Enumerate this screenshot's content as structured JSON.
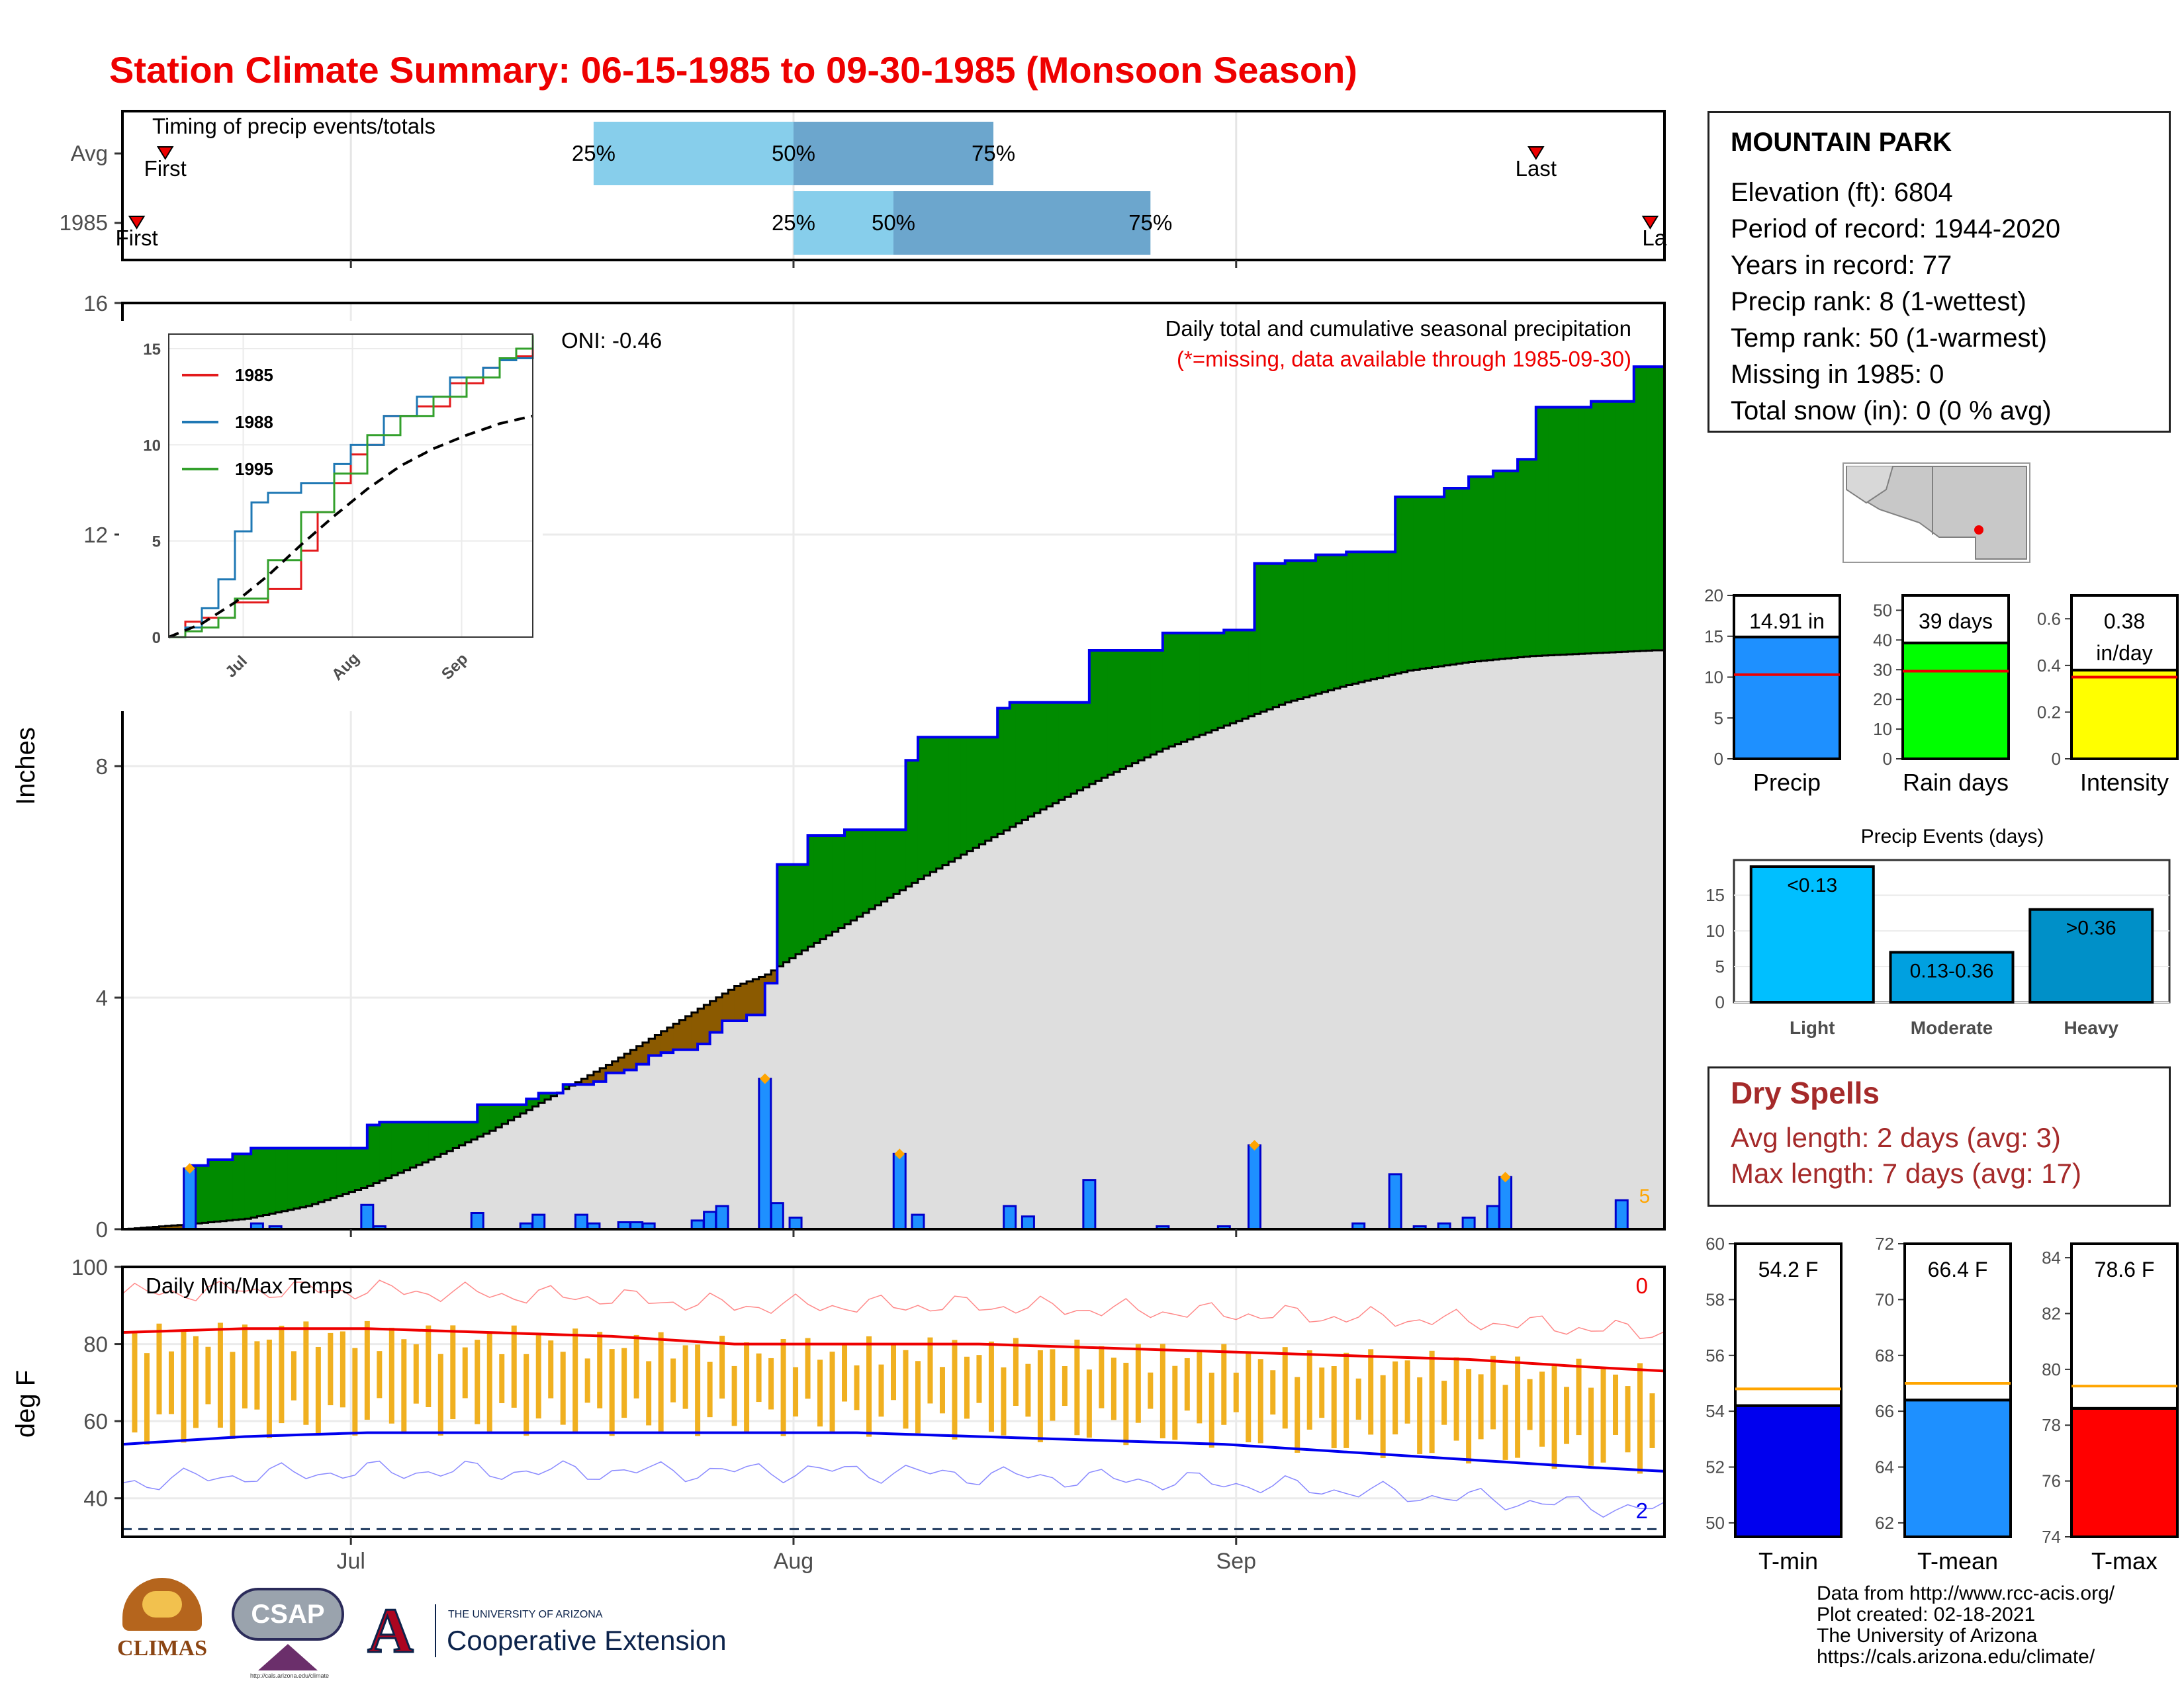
{
  "title": "Station Climate Summary: 06-15-1985 to 09-30-1985 (Monsoon Season)",
  "station": {
    "name": "MOUNTAIN PARK",
    "lines": [
      "Elevation (ft): 6804",
      "Period of record: 1944-2020",
      "Years in record: 77",
      "Precip rank: 8 (1-wettest)",
      "Temp rank: 50 (1-warmest)",
      "Missing in 1985: 0",
      "Total snow (in): 0 (0 % avg)"
    ]
  },
  "dry_spells": {
    "title": "Dry Spells",
    "avg": "Avg length: 2 days (avg: 3)",
    "max": "Max length: 7 days (avg: 17)"
  },
  "footer": [
    "Data from http://www.rcc-acis.org/",
    "Plot created: 02-18-2021",
    "The University of Arizona",
    "https://cals.arizona.edu/climate/"
  ],
  "logos": {
    "climas": "CLIMAS",
    "csap": "CSAP",
    "csap_url": "http://cals.arizona.edu/climate",
    "ua_small": "THE UNIVERSITY OF ARIZONA",
    "ua_big": "Cooperative Extension"
  },
  "colors": {
    "title": "#ee0000",
    "above_avg": "#008b00",
    "below_avg": "#8b5a00",
    "avg_area": "#dedede",
    "daily_bar": "#1e90ff",
    "timing_light": "#87ceeb",
    "timing_dark": "#6ca6cd",
    "temp_bar": "#f0b020",
    "tmax_avg": "#ee0000",
    "tmin_avg": "#0000ee",
    "precip_bar": "#1e90ff",
    "raindays_bar": "#00ff00",
    "intensity_bar": "#ffff00",
    "dry_text": "#a52a2a"
  },
  "chart_data": [
    {
      "id": "timing",
      "type": "bar",
      "title": "Timing of precip events/totals",
      "categories": [
        "Avg",
        "1985"
      ],
      "x_ticks": [
        "Jul",
        "Aug",
        "Sep"
      ],
      "rows": [
        {
          "label": "Avg",
          "first": "06-18",
          "q25": "07-18",
          "q50": "08-01",
          "q75": "08-15",
          "last": "09-22"
        },
        {
          "label": "1985",
          "first": "06-16",
          "q25": "08-01",
          "q50": "08-08",
          "q75": "08-26",
          "last": "09-30"
        }
      ],
      "labels": {
        "first": "First",
        "last": "Last",
        "last_truncated": "La",
        "q25": "25%",
        "q50": "50%",
        "q75": "75%"
      }
    },
    {
      "id": "cumulative",
      "type": "area",
      "title": "Daily total and cumulative seasonal precipitation",
      "subtitle": "(*=missing, data available through 1985-09-30)",
      "annotation": "ONI: -0.46",
      "ylabel": "Inches",
      "ylim": [
        0,
        16
      ],
      "yticks": [
        0,
        4,
        8,
        12,
        16
      ],
      "x_ticks": [
        "Jul",
        "Aug",
        "Sep"
      ],
      "corner_label": "5",
      "cumulative_1985": [
        [
          0,
          0
        ],
        [
          10,
          0.05
        ],
        [
          11,
          1.1
        ],
        [
          14,
          1.2
        ],
        [
          18,
          1.3
        ],
        [
          21,
          1.4
        ],
        [
          40,
          1.8
        ],
        [
          42,
          1.85
        ],
        [
          50,
          1.85
        ],
        [
          58,
          2.15
        ],
        [
          66,
          2.25
        ],
        [
          68,
          2.35
        ],
        [
          72,
          2.5
        ],
        [
          77,
          2.55
        ],
        [
          79,
          2.7
        ],
        [
          82,
          2.75
        ],
        [
          84,
          2.85
        ],
        [
          86,
          3.0
        ],
        [
          88,
          3.05
        ],
        [
          90,
          3.1
        ],
        [
          94,
          3.2
        ],
        [
          96,
          3.4
        ],
        [
          98,
          3.6
        ],
        [
          102,
          3.7
        ],
        [
          105,
          4.25
        ],
        [
          107,
          6.3
        ],
        [
          110,
          6.3
        ],
        [
          112,
          6.8
        ],
        [
          118,
          6.9
        ],
        [
          125,
          6.9
        ],
        [
          128,
          8.1
        ],
        [
          130,
          8.5
        ],
        [
          138,
          8.5
        ],
        [
          143,
          9.0
        ],
        [
          145,
          9.1
        ],
        [
          148,
          9.1
        ],
        [
          155,
          9.1
        ],
        [
          158,
          10.0
        ],
        [
          160,
          10.0
        ],
        [
          167,
          10.0
        ],
        [
          170,
          10.3
        ],
        [
          180,
          10.35
        ],
        [
          182,
          10.35
        ],
        [
          185,
          11.5
        ],
        [
          190,
          11.55
        ],
        [
          195,
          11.65
        ],
        [
          200,
          11.7
        ],
        [
          202,
          11.7
        ],
        [
          208,
          12.65
        ],
        [
          212,
          12.65
        ],
        [
          216,
          12.8
        ],
        [
          220,
          13.0
        ],
        [
          224,
          13.1
        ],
        [
          228,
          13.3
        ],
        [
          231,
          14.2
        ],
        [
          240,
          14.3
        ],
        [
          247,
          14.9
        ],
        [
          252,
          14.9
        ]
      ],
      "avg_cumulative": [
        [
          0,
          0
        ],
        [
          10,
          0.08
        ],
        [
          20,
          0.18
        ],
        [
          30,
          0.4
        ],
        [
          40,
          0.75
        ],
        [
          50,
          1.2
        ],
        [
          60,
          1.7
        ],
        [
          70,
          2.3
        ],
        [
          80,
          2.9
        ],
        [
          90,
          3.55
        ],
        [
          100,
          4.2
        ],
        [
          105,
          4.4
        ],
        [
          110,
          4.75
        ],
        [
          120,
          5.4
        ],
        [
          130,
          6.05
        ],
        [
          140,
          6.65
        ],
        [
          150,
          7.25
        ],
        [
          160,
          7.8
        ],
        [
          170,
          8.3
        ],
        [
          180,
          8.7
        ],
        [
          190,
          9.1
        ],
        [
          200,
          9.4
        ],
        [
          210,
          9.65
        ],
        [
          220,
          9.8
        ],
        [
          230,
          9.9
        ],
        [
          240,
          9.95
        ],
        [
          250,
          10.0
        ]
      ],
      "daily_1985": [
        [
          11,
          1.05
        ],
        [
          22,
          0.1
        ],
        [
          25,
          0.05
        ],
        [
          40,
          0.42
        ],
        [
          42,
          0.05
        ],
        [
          58,
          0.28
        ],
        [
          66,
          0.1
        ],
        [
          68,
          0.25
        ],
        [
          75,
          0.25
        ],
        [
          77,
          0.1
        ],
        [
          82,
          0.12
        ],
        [
          84,
          0.12
        ],
        [
          86,
          0.1
        ],
        [
          94,
          0.15
        ],
        [
          96,
          0.3
        ],
        [
          98,
          0.4
        ],
        [
          105,
          2.6
        ],
        [
          107,
          0.45
        ],
        [
          110,
          0.2
        ],
        [
          127,
          1.3
        ],
        [
          130,
          0.25
        ],
        [
          145,
          0.4
        ],
        [
          148,
          0.22
        ],
        [
          158,
          0.85
        ],
        [
          170,
          0.05
        ],
        [
          180,
          0.05
        ],
        [
          185,
          1.45
        ],
        [
          202,
          0.1
        ],
        [
          208,
          0.95
        ],
        [
          212,
          0.05
        ],
        [
          216,
          0.1
        ],
        [
          220,
          0.2
        ],
        [
          224,
          0.4
        ],
        [
          226,
          0.9
        ],
        [
          245,
          0.5
        ]
      ],
      "max_markers_days": [
        11,
        105,
        127,
        185,
        226
      ]
    },
    {
      "id": "inset",
      "type": "line",
      "ylim": [
        0,
        15
      ],
      "yticks": [
        0,
        5,
        10,
        15
      ],
      "x_ticks": [
        "Jul",
        "Aug",
        "Sep"
      ],
      "series": [
        {
          "name": "1985",
          "color": "#e31a1c",
          "values": [
            [
              0,
              0
            ],
            [
              10,
              0.8
            ],
            [
              20,
              1.0
            ],
            [
              40,
              1.8
            ],
            [
              60,
              2.5
            ],
            [
              80,
              4.5
            ],
            [
              90,
              6.5
            ],
            [
              100,
              8.0
            ],
            [
              110,
              9.5
            ],
            [
              120,
              10.0
            ],
            [
              130,
              11.5
            ],
            [
              150,
              12.0
            ],
            [
              170,
              13.2
            ],
            [
              190,
              14.0
            ],
            [
              200,
              14.5
            ],
            [
              210,
              14.6
            ],
            [
              220,
              15.0
            ]
          ]
        },
        {
          "name": "1988",
          "color": "#1f78b4",
          "values": [
            [
              0,
              0
            ],
            [
              10,
              0.5
            ],
            [
              20,
              1.5
            ],
            [
              30,
              3.0
            ],
            [
              40,
              5.5
            ],
            [
              50,
              7.0
            ],
            [
              60,
              7.5
            ],
            [
              80,
              8.0
            ],
            [
              100,
              9.0
            ],
            [
              110,
              10.0
            ],
            [
              130,
              11.5
            ],
            [
              150,
              12.5
            ],
            [
              170,
              13.5
            ],
            [
              190,
              14.0
            ],
            [
              200,
              14.4
            ],
            [
              210,
              14.5
            ],
            [
              220,
              14.6
            ]
          ]
        },
        {
          "name": "1995",
          "color": "#33a02c",
          "values": [
            [
              0,
              0
            ],
            [
              10,
              0.3
            ],
            [
              20,
              0.5
            ],
            [
              30,
              1.0
            ],
            [
              40,
              2.0
            ],
            [
              60,
              4.0
            ],
            [
              80,
              6.5
            ],
            [
              100,
              8.5
            ],
            [
              120,
              10.5
            ],
            [
              140,
              11.5
            ],
            [
              160,
              12.5
            ],
            [
              180,
              13.5
            ],
            [
              200,
              14.5
            ],
            [
              210,
              15.0
            ],
            [
              220,
              15.7
            ]
          ]
        },
        {
          "name": "Average",
          "color": "#000000",
          "values": [
            [
              0,
              0
            ],
            [
              20,
              0.7
            ],
            [
              40,
              1.8
            ],
            [
              60,
              3.2
            ],
            [
              80,
              4.8
            ],
            [
              100,
              6.3
            ],
            [
              120,
              7.7
            ],
            [
              140,
              8.9
            ],
            [
              160,
              9.8
            ],
            [
              180,
              10.5
            ],
            [
              200,
              11.1
            ],
            [
              220,
              11.5
            ]
          ]
        }
      ]
    },
    {
      "id": "temps",
      "type": "bar",
      "title": "Daily Min/Max Temps",
      "ylabel": "deg F",
      "ylim": [
        30,
        100
      ],
      "yticks": [
        40,
        60,
        80,
        100
      ],
      "x_ticks": [
        "Jul",
        "Aug",
        "Sep"
      ],
      "hot_count": "0",
      "cold_count": "2",
      "freezing_line": 32,
      "avg_max": [
        [
          0,
          83
        ],
        [
          20,
          84
        ],
        [
          40,
          84
        ],
        [
          60,
          83
        ],
        [
          80,
          82
        ],
        [
          100,
          80
        ],
        [
          120,
          80
        ],
        [
          140,
          80
        ],
        [
          160,
          79
        ],
        [
          180,
          78
        ],
        [
          200,
          77
        ],
        [
          220,
          76
        ],
        [
          240,
          74
        ],
        [
          252,
          73
        ]
      ],
      "avg_min": [
        [
          0,
          54
        ],
        [
          20,
          56
        ],
        [
          40,
          57
        ],
        [
          60,
          57
        ],
        [
          80,
          57
        ],
        [
          100,
          57
        ],
        [
          120,
          57
        ],
        [
          140,
          56
        ],
        [
          160,
          55
        ],
        [
          180,
          54
        ],
        [
          200,
          52
        ],
        [
          220,
          50
        ],
        [
          240,
          48
        ],
        [
          252,
          47
        ]
      ]
    },
    {
      "id": "summary-bars",
      "type": "bar",
      "panels": [
        {
          "name": "Precip",
          "value": 14.91,
          "label": "14.91 in",
          "avg": 10.3,
          "ylim": [
            0,
            20
          ],
          "yticks": [
            0,
            5,
            10,
            15,
            20
          ],
          "color": "#1e90ff"
        },
        {
          "name": "Rain days",
          "value": 39,
          "label": "39 days",
          "avg": 29.5,
          "ylim": [
            0,
            55
          ],
          "yticks": [
            0,
            10,
            20,
            30,
            40,
            50
          ],
          "color": "#00ff00"
        },
        {
          "name": "Intensity",
          "value": 0.38,
          "label": "0.38",
          "label2": "in/day",
          "avg": 0.35,
          "ylim": [
            0,
            0.7
          ],
          "yticks": [
            0.0,
            0.2,
            0.4,
            0.6
          ],
          "color": "#ffff00"
        }
      ]
    },
    {
      "id": "precip-events",
      "type": "bar",
      "title": "Precip Events (days)",
      "categories": [
        "Light",
        "Moderate",
        "Heavy"
      ],
      "values": [
        19,
        7,
        13
      ],
      "bar_labels": [
        "<0.13",
        "0.13-0.36",
        ">0.36"
      ],
      "ylim": [
        0,
        19
      ],
      "yticks": [
        0,
        5,
        10,
        15
      ],
      "colors": [
        "#00bfff",
        "#00a0e0",
        "#0090c8"
      ]
    },
    {
      "id": "temp-summary",
      "type": "bar",
      "panels": [
        {
          "name": "T-min",
          "value": 54.2,
          "label": "54.2 F",
          "avg": 54.8,
          "ylim": [
            49.5,
            60
          ],
          "yticks": [
            50,
            52,
            54,
            56,
            58,
            60
          ],
          "color": "#0000ee"
        },
        {
          "name": "T-mean",
          "value": 66.4,
          "label": "66.4 F",
          "avg": 67.0,
          "ylim": [
            61.5,
            72
          ],
          "yticks": [
            62,
            64,
            66,
            68,
            70,
            72
          ],
          "color": "#1e90ff"
        },
        {
          "name": "T-max",
          "value": 78.6,
          "label": "78.6 F",
          "avg": 79.4,
          "ylim": [
            74,
            84.5
          ],
          "yticks": [
            74,
            76,
            78,
            80,
            82,
            84
          ],
          "color": "#ff0000"
        }
      ]
    }
  ]
}
